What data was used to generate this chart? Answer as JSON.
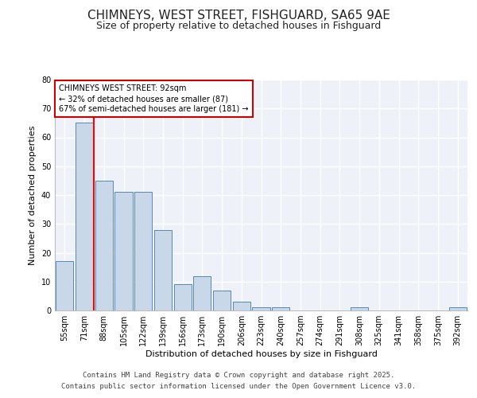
{
  "title": "CHIMNEYS, WEST STREET, FISHGUARD, SA65 9AE",
  "subtitle": "Size of property relative to detached houses in Fishguard",
  "xlabel": "Distribution of detached houses by size in Fishguard",
  "ylabel": "Number of detached properties",
  "categories": [
    "55sqm",
    "71sqm",
    "88sqm",
    "105sqm",
    "122sqm",
    "139sqm",
    "156sqm",
    "173sqm",
    "190sqm",
    "206sqm",
    "223sqm",
    "240sqm",
    "257sqm",
    "274sqm",
    "291sqm",
    "308sqm",
    "325sqm",
    "341sqm",
    "358sqm",
    "375sqm",
    "392sqm"
  ],
  "values": [
    17,
    65,
    45,
    41,
    41,
    28,
    9,
    12,
    7,
    3,
    1,
    1,
    0,
    0,
    0,
    1,
    0,
    0,
    0,
    0,
    1
  ],
  "bar_color": "#c8d8e8",
  "bar_edge_color": "#5588bb",
  "annotation_text": "CHIMNEYS WEST STREET: 92sqm\n← 32% of detached houses are smaller (87)\n67% of semi-detached houses are larger (181) →",
  "annotation_box_color": "#ffffff",
  "annotation_box_edge": "#cc0000",
  "footer_line1": "Contains HM Land Registry data © Crown copyright and database right 2025.",
  "footer_line2": "Contains public sector information licensed under the Open Government Licence v3.0.",
  "ylim": [
    0,
    80
  ],
  "yticks": [
    0,
    10,
    20,
    30,
    40,
    50,
    60,
    70,
    80
  ],
  "background_color": "#eef2f8",
  "grid_color": "#ffffff",
  "title_fontsize": 11,
  "subtitle_fontsize": 9,
  "tick_fontsize": 7,
  "ylabel_fontsize": 8,
  "xlabel_fontsize": 8,
  "footer_fontsize": 6.5
}
